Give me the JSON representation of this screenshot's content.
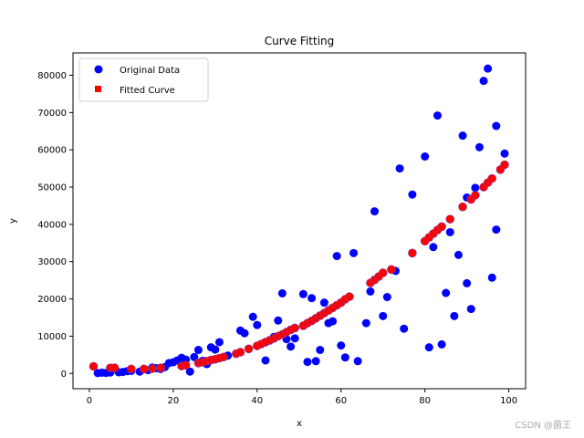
{
  "colors": {
    "original": "#0000ff",
    "fitted": "#ff0000",
    "fitted_edge": "#7a3fb0",
    "axis": "#000000"
  },
  "watermark": "CSDN @菌王",
  "chart_data": {
    "type": "scatter",
    "title": "Curve Fitting",
    "xlabel": "x",
    "ylabel": "y",
    "xlim": [
      -3.9,
      104
    ],
    "ylim": [
      -4100,
      86000
    ],
    "xticks": [
      0,
      20,
      40,
      60,
      80,
      100
    ],
    "yticks": [
      0,
      10000,
      20000,
      30000,
      40000,
      50000,
      60000,
      70000,
      80000
    ],
    "legend": {
      "position": "top-left",
      "entries": [
        "Original Data",
        "Fitted Curve"
      ]
    },
    "series": [
      {
        "name": "Original Data",
        "marker": "circle",
        "points": [
          [
            2,
            100
          ],
          [
            3,
            200
          ],
          [
            4,
            150
          ],
          [
            5,
            250
          ],
          [
            7,
            300
          ],
          [
            8,
            400
          ],
          [
            9,
            600
          ],
          [
            10,
            700
          ],
          [
            12,
            500
          ],
          [
            13,
            1100
          ],
          [
            14,
            900
          ],
          [
            15,
            1600
          ],
          [
            16,
            1400
          ],
          [
            17,
            1200
          ],
          [
            18,
            1700
          ],
          [
            19,
            2800
          ],
          [
            20,
            3000
          ],
          [
            21,
            3500
          ],
          [
            22,
            4200
          ],
          [
            23,
            3700
          ],
          [
            24,
            500
          ],
          [
            25,
            4400
          ],
          [
            26,
            6300
          ],
          [
            27,
            3400
          ],
          [
            29,
            7000
          ],
          [
            30,
            6400
          ],
          [
            31,
            8400
          ],
          [
            36,
            11500
          ],
          [
            37,
            10800
          ],
          [
            39,
            15200
          ],
          [
            40,
            13000
          ],
          [
            42,
            3500
          ],
          [
            44,
            9800
          ],
          [
            45,
            14200
          ],
          [
            46,
            21500
          ],
          [
            47,
            9200
          ],
          [
            48,
            7200
          ],
          [
            49,
            9400
          ],
          [
            51,
            21300
          ],
          [
            52,
            3100
          ],
          [
            53,
            20200
          ],
          [
            54,
            3300
          ],
          [
            55,
            6300
          ],
          [
            56,
            19000
          ],
          [
            57,
            13500
          ],
          [
            58,
            14000
          ],
          [
            59,
            31500
          ],
          [
            60,
            7500
          ],
          [
            61,
            4300
          ],
          [
            63,
            32300
          ],
          [
            66,
            13500
          ],
          [
            67,
            22000
          ],
          [
            68,
            43500
          ],
          [
            70,
            15400
          ],
          [
            71,
            20500
          ],
          [
            73,
            27500
          ],
          [
            74,
            55000
          ],
          [
            75,
            12000
          ],
          [
            77,
            48000
          ],
          [
            80,
            58200
          ],
          [
            81,
            7000
          ],
          [
            82,
            33900
          ],
          [
            83,
            69200
          ],
          [
            84,
            7800
          ],
          [
            85,
            21600
          ],
          [
            87,
            15400
          ],
          [
            88,
            31800
          ],
          [
            89,
            63800
          ],
          [
            90,
            47200
          ],
          [
            91,
            17300
          ],
          [
            92,
            49800
          ],
          [
            93,
            60700
          ],
          [
            94,
            78500
          ],
          [
            95,
            81800
          ],
          [
            96,
            25700
          ],
          [
            97,
            66400
          ],
          [
            97,
            38600
          ],
          [
            99,
            59000
          ],
          [
            28,
            2500
          ],
          [
            33,
            4800
          ],
          [
            43,
            8800
          ],
          [
            64,
            3300
          ],
          [
            86,
            37900
          ],
          [
            90,
            24200
          ]
        ]
      },
      {
        "name": "Fitted Curve",
        "marker": "square",
        "points": [
          [
            1,
            1900
          ],
          [
            5,
            1500
          ],
          [
            6,
            1500
          ],
          [
            10,
            1200
          ],
          [
            13,
            1200
          ],
          [
            15,
            1300
          ],
          [
            17,
            1500
          ],
          [
            22,
            2000
          ],
          [
            23,
            2200
          ],
          [
            26,
            2800
          ],
          [
            27,
            3000
          ],
          [
            28,
            3300
          ],
          [
            29,
            3600
          ],
          [
            30,
            3800
          ],
          [
            31,
            4100
          ],
          [
            32,
            4400
          ],
          [
            35,
            5300
          ],
          [
            36,
            5700
          ],
          [
            38,
            6600
          ],
          [
            40,
            7400
          ],
          [
            41,
            7900
          ],
          [
            42,
            8400
          ],
          [
            43,
            8900
          ],
          [
            44,
            9400
          ],
          [
            45,
            10000
          ],
          [
            46,
            10500
          ],
          [
            47,
            11100
          ],
          [
            48,
            11700
          ],
          [
            49,
            12200
          ],
          [
            51,
            12800
          ],
          [
            52,
            13500
          ],
          [
            53,
            14100
          ],
          [
            54,
            14800
          ],
          [
            55,
            15500
          ],
          [
            56,
            16200
          ],
          [
            57,
            16900
          ],
          [
            58,
            17600
          ],
          [
            59,
            18300
          ],
          [
            60,
            19000
          ],
          [
            61,
            19900
          ],
          [
            62,
            20600
          ],
          [
            67,
            24300
          ],
          [
            68,
            25100
          ],
          [
            69,
            26000
          ],
          [
            70,
            27000
          ],
          [
            72,
            27900
          ],
          [
            77,
            32300
          ],
          [
            80,
            35500
          ],
          [
            81,
            36500
          ],
          [
            82,
            37500
          ],
          [
            83,
            38500
          ],
          [
            84,
            39400
          ],
          [
            86,
            41400
          ],
          [
            89,
            44700
          ],
          [
            91,
            46700
          ],
          [
            92,
            47800
          ],
          [
            94,
            50000
          ],
          [
            95,
            51200
          ],
          [
            96,
            52300
          ],
          [
            98,
            54700
          ],
          [
            99,
            56000
          ]
        ]
      }
    ]
  }
}
